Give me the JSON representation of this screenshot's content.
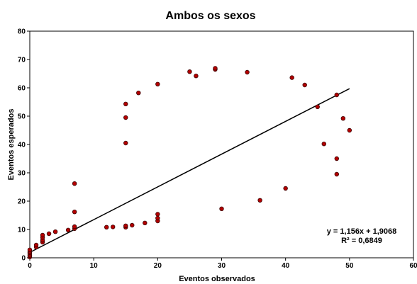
{
  "chart_data": {
    "type": "scatter",
    "title": "Ambos os sexos",
    "xlabel": "Eventos  observados",
    "ylabel": "Eventos  esperados",
    "xlim": [
      0,
      60
    ],
    "ylim": [
      0,
      80
    ],
    "x_ticks": [
      0,
      10,
      20,
      30,
      40,
      50,
      60
    ],
    "y_ticks": [
      0,
      10,
      20,
      30,
      40,
      50,
      60,
      70,
      80
    ],
    "grid": false,
    "legend": "none",
    "marker_color": "#b40000",
    "marker_edge_color": "#3a0000",
    "trendline": {
      "slope": 1.156,
      "intercept": 1.9068,
      "x_range": [
        0,
        50
      ],
      "color": "#000000"
    },
    "equation_text": "y = 1,156x + 1,9068",
    "r2_text": "R² = 0,6849",
    "points": [
      [
        0,
        0.3
      ],
      [
        0,
        0.8
      ],
      [
        0,
        1.3
      ],
      [
        0,
        1.8
      ],
      [
        0,
        2.3
      ],
      [
        0,
        2.8
      ],
      [
        1,
        3.8
      ],
      [
        1,
        4.5
      ],
      [
        2,
        5.5
      ],
      [
        2,
        6.2
      ],
      [
        2,
        7.2
      ],
      [
        2,
        8.0
      ],
      [
        3,
        8.5
      ],
      [
        4,
        9.2
      ],
      [
        6,
        9.8
      ],
      [
        7,
        10.3
      ],
      [
        7,
        11.0
      ],
      [
        7,
        16.2
      ],
      [
        7,
        26.2
      ],
      [
        12,
        10.8
      ],
      [
        13,
        10.9
      ],
      [
        15,
        10.8
      ],
      [
        15,
        11.3
      ],
      [
        15,
        40.5
      ],
      [
        15,
        49.5
      ],
      [
        15,
        54.3
      ],
      [
        16,
        11.5
      ],
      [
        17,
        58.2
      ],
      [
        18,
        12.3
      ],
      [
        20,
        13.0
      ],
      [
        20,
        14.0
      ],
      [
        20,
        15.4
      ],
      [
        20,
        61.3
      ],
      [
        25,
        65.7
      ],
      [
        26,
        64.2
      ],
      [
        29,
        66.5
      ],
      [
        29,
        66.9
      ],
      [
        30,
        17.3
      ],
      [
        34,
        65.5
      ],
      [
        36,
        20.3
      ],
      [
        40,
        24.5
      ],
      [
        41,
        63.6
      ],
      [
        43,
        61.0
      ],
      [
        45,
        53.3
      ],
      [
        46,
        40.2
      ],
      [
        48,
        57.5
      ],
      [
        48,
        35.0
      ],
      [
        48,
        29.5
      ],
      [
        49,
        49.2
      ],
      [
        50,
        45.0
      ]
    ]
  }
}
